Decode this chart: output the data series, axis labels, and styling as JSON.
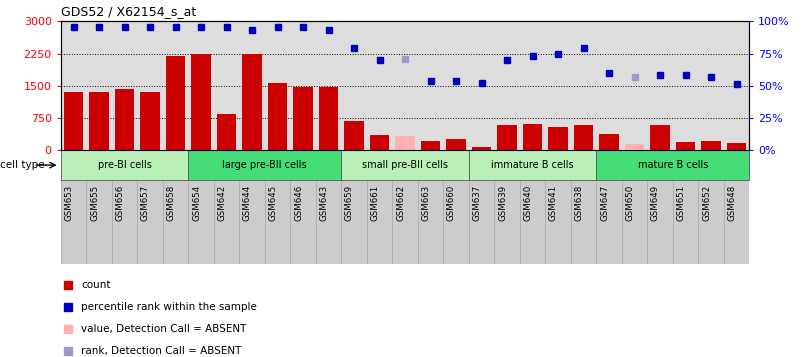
{
  "title": "GDS52 / X62154_s_at",
  "samples": [
    "GSM653",
    "GSM655",
    "GSM656",
    "GSM657",
    "GSM658",
    "GSM654",
    "GSM642",
    "GSM644",
    "GSM645",
    "GSM646",
    "GSM643",
    "GSM659",
    "GSM661",
    "GSM662",
    "GSM663",
    "GSM660",
    "GSM637",
    "GSM639",
    "GSM640",
    "GSM641",
    "GSM638",
    "GSM647",
    "GSM650",
    "GSM649",
    "GSM651",
    "GSM652",
    "GSM648"
  ],
  "bar_values": [
    1350,
    1350,
    1420,
    1350,
    2200,
    2250,
    850,
    2250,
    1570,
    1460,
    1460,
    680,
    350,
    320,
    200,
    260,
    70,
    580,
    600,
    540,
    580,
    380,
    140,
    580,
    190,
    210,
    170
  ],
  "bar_absent": [
    false,
    false,
    false,
    false,
    false,
    false,
    false,
    false,
    false,
    false,
    false,
    false,
    false,
    true,
    false,
    false,
    false,
    false,
    false,
    false,
    false,
    false,
    true,
    false,
    false,
    false,
    false
  ],
  "dot_values": [
    96,
    96,
    96,
    96,
    96,
    96,
    96,
    93,
    96,
    96,
    93,
    79,
    70,
    71,
    54,
    54,
    52,
    70,
    73,
    75,
    79,
    60,
    57,
    58,
    58,
    57,
    51
  ],
  "dot_absent": [
    false,
    false,
    false,
    false,
    false,
    false,
    false,
    false,
    false,
    false,
    false,
    false,
    false,
    true,
    false,
    false,
    false,
    false,
    false,
    false,
    false,
    false,
    true,
    false,
    false,
    false,
    false
  ],
  "cell_groups": [
    {
      "label": "pre-BI cells",
      "start": 0,
      "end": 5,
      "color": "#b8f0b8"
    },
    {
      "label": "large pre-BII cells",
      "start": 5,
      "end": 11,
      "color": "#44dd77"
    },
    {
      "label": "small pre-BII cells",
      "start": 11,
      "end": 16,
      "color": "#b8f0b8"
    },
    {
      "label": "immature B cells",
      "start": 16,
      "end": 21,
      "color": "#b8f0b8"
    },
    {
      "label": "mature B cells",
      "start": 21,
      "end": 27,
      "color": "#44dd77"
    }
  ],
  "ylim_left": [
    0,
    3000
  ],
  "ylim_right": [
    0,
    100
  ],
  "yticks_left": [
    0,
    750,
    1500,
    2250,
    3000
  ],
  "yticks_right": [
    0,
    25,
    50,
    75,
    100
  ],
  "yticklabels_left": [
    "0",
    "750",
    "1500",
    "2250",
    "3000"
  ],
  "yticklabels_right": [
    "0%",
    "25%",
    "50%",
    "75%",
    "100%"
  ],
  "bar_color_present": "#cc0000",
  "bar_color_absent": "#ffb0b0",
  "dot_color_present": "#0000bb",
  "dot_color_absent": "#9999cc",
  "plot_bg": "#dddddd",
  "xtick_bg": "#cccccc",
  "legend_items": [
    {
      "label": "count",
      "color": "#cc0000"
    },
    {
      "label": "percentile rank within the sample",
      "color": "#0000bb"
    },
    {
      "label": "value, Detection Call = ABSENT",
      "color": "#ffb0b0"
    },
    {
      "label": "rank, Detection Call = ABSENT",
      "color": "#9999cc"
    }
  ]
}
